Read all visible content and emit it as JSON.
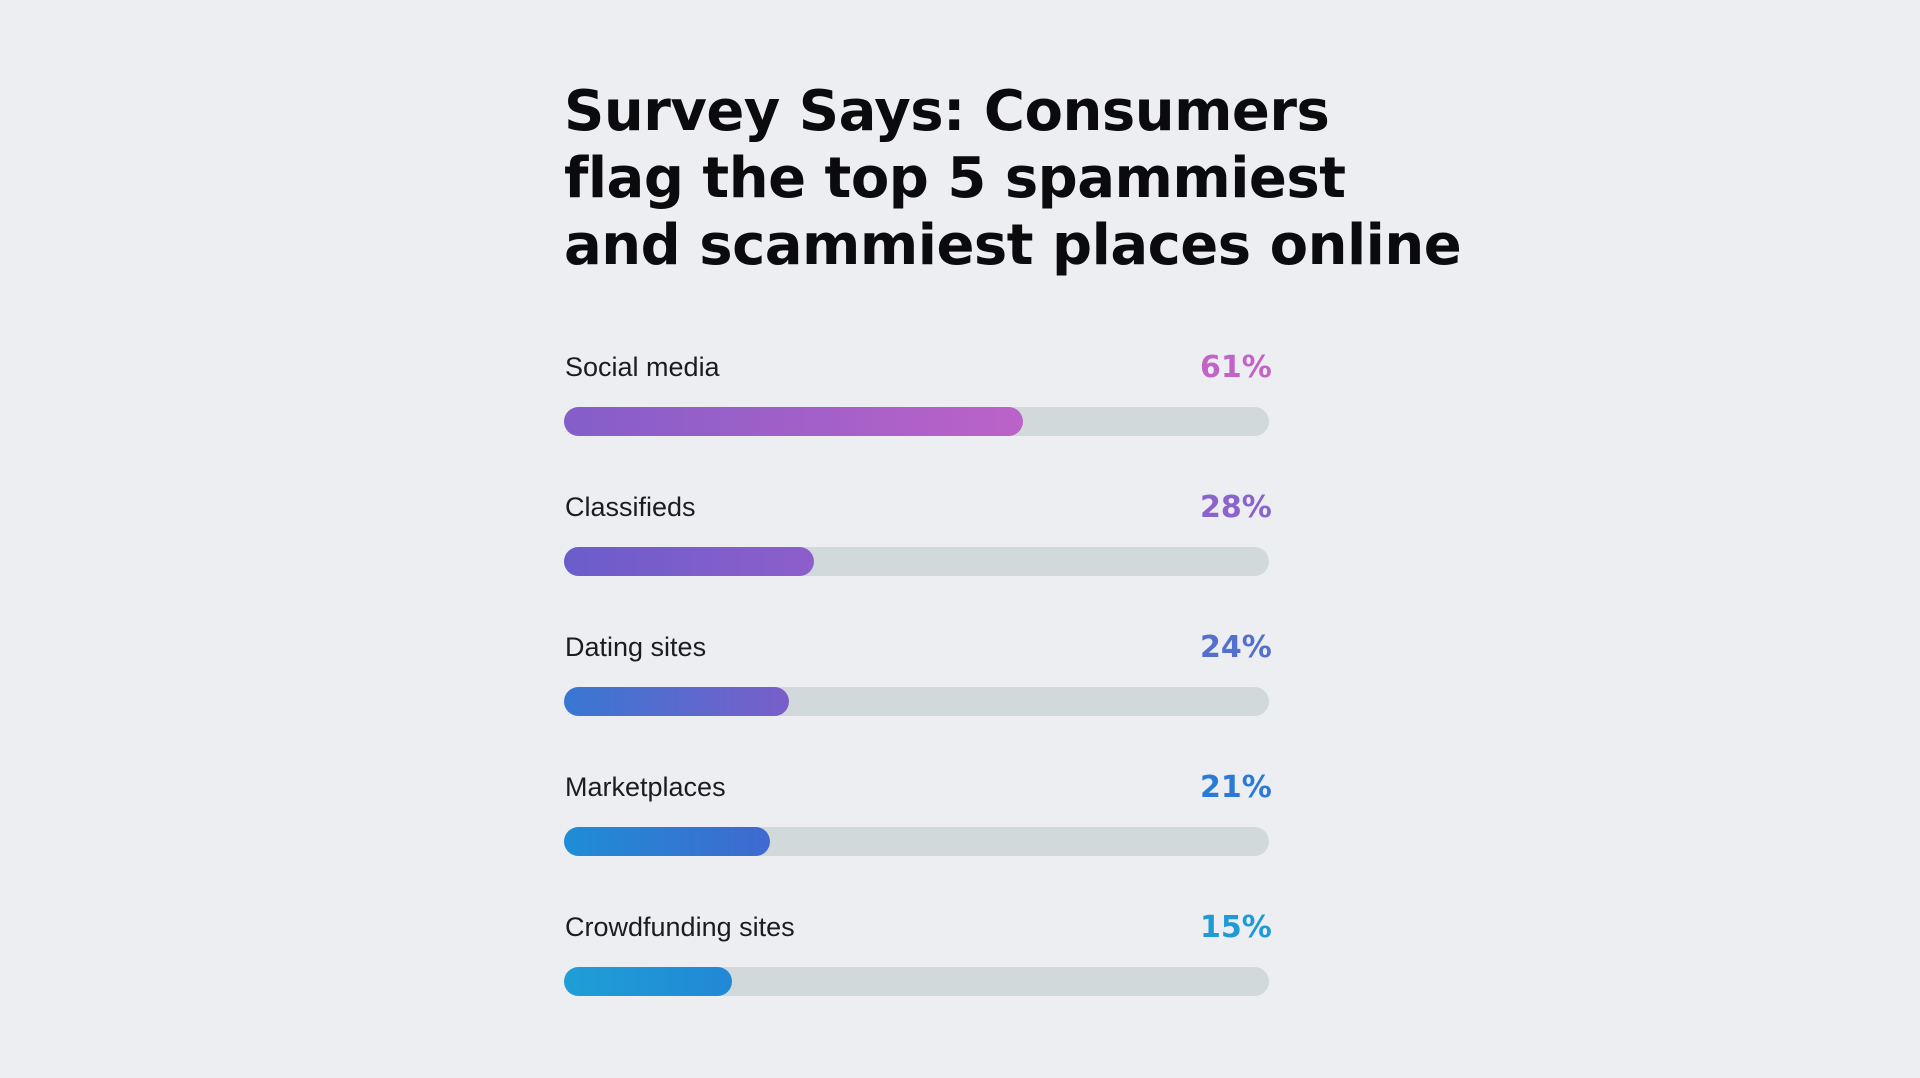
{
  "chart_data": {
    "type": "bar",
    "orientation": "horizontal",
    "title_lines": [
      "Survey Says: Consumers",
      "flag the top 5 spammiest",
      "and scammiest places online"
    ],
    "categories": [
      "Social media",
      "Classifieds",
      "Dating sites",
      "Marketplaces",
      "Crowdfunding sites"
    ],
    "values": [
      61,
      28,
      24,
      21,
      15
    ],
    "value_labels": [
      "61%",
      "28%",
      "24%",
      "21%",
      "15%"
    ],
    "unit": "%",
    "grid": false,
    "legend": "none"
  },
  "colors": {
    "background": "#edeef2",
    "track": "#d1d9db",
    "label_colors": [
      "#c263c8",
      "#8a64cc",
      "#5470cf",
      "#2a7ad6",
      "#1f9ad6"
    ],
    "gradients": [
      [
        "#845ec9",
        "#bc62c8"
      ],
      [
        "#6a5dca",
        "#8e5ecb"
      ],
      [
        "#3877d3",
        "#7a5ec9"
      ],
      [
        "#1e8dd6",
        "#4069cf"
      ],
      [
        "#1f9fd6",
        "#2188d6"
      ]
    ]
  }
}
